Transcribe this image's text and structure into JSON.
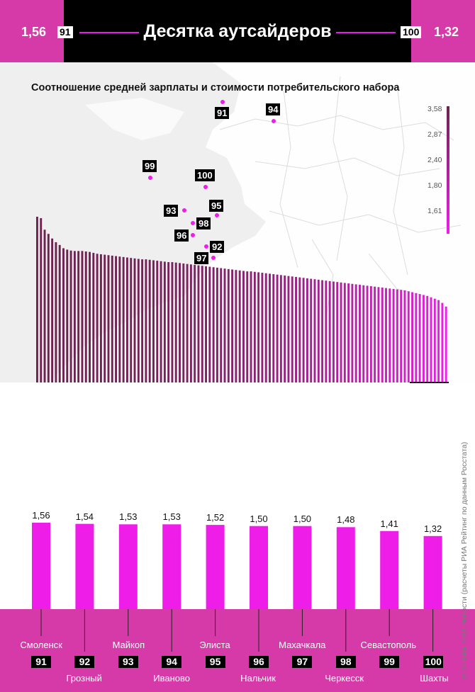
{
  "header": {
    "title": "Десятка аутсайдеров",
    "left_value": "1,56",
    "left_rank": "91",
    "right_value": "1,32",
    "right_rank": "100"
  },
  "map": {
    "subtitle": "Соотношение средней зарплаты и стоимости потребительского набора",
    "markers": [
      "91",
      "94",
      "99",
      "100",
      "93",
      "95",
      "98",
      "96",
      "92",
      "97"
    ]
  },
  "legend": {
    "ticks": [
      "3,58",
      "2,87",
      "2,40",
      "1,80",
      "1,61"
    ]
  },
  "colors": {
    "magenta": "#ee1ee8",
    "pink_band": "#d63aa8",
    "dark_bar": "#6e2250",
    "map_bg": "#efefef"
  },
  "chart_data": [
    {
      "type": "bar",
      "title": "",
      "note": "ranking profile of all regions (unlabeled)",
      "values": [
        3.58,
        3.55,
        3.3,
        3.21,
        3.11,
        3.03,
        2.97,
        2.9,
        2.87,
        2.85,
        2.84,
        2.84,
        2.84,
        2.83,
        2.82,
        2.8,
        2.78,
        2.77,
        2.76,
        2.75,
        2.74,
        2.73,
        2.72,
        2.71,
        2.7,
        2.69,
        2.68,
        2.67,
        2.66,
        2.66,
        2.65,
        2.64,
        2.63,
        2.62,
        2.61,
        2.6,
        2.6,
        2.59,
        2.58,
        2.57,
        2.56,
        2.55,
        2.54,
        2.53,
        2.52,
        2.51,
        2.5,
        2.49,
        2.48,
        2.47,
        2.46,
        2.45,
        2.44,
        2.43,
        2.42,
        2.41,
        2.4,
        2.4,
        2.39,
        2.38,
        2.37,
        2.36,
        2.35,
        2.34,
        2.33,
        2.32,
        2.31,
        2.3,
        2.29,
        2.28,
        2.27,
        2.26,
        2.25,
        2.24,
        2.23,
        2.22,
        2.21,
        2.2,
        2.19,
        2.18,
        2.17,
        2.16,
        2.15,
        2.14,
        2.13,
        2.12,
        2.11,
        2.1,
        2.09,
        2.08,
        2.07,
        2.06,
        2.05,
        2.04,
        2.03,
        2.02,
        2.01,
        2.0,
        1.99,
        1.97,
        1.95,
        1.93,
        1.91,
        1.89,
        1.87,
        1.84,
        1.81,
        1.78,
        1.72,
        1.64
      ]
    },
    {
      "type": "bar",
      "title": "",
      "categories": [
        "Смоленск",
        "Грозный",
        "Майкоп",
        "Иваново",
        "Элиста",
        "Нальчик",
        "Махачкала",
        "Черкесск",
        "Севастополь",
        "Шахты"
      ],
      "ranks": [
        "91",
        "92",
        "93",
        "94",
        "95",
        "96",
        "97",
        "98",
        "99",
        "100"
      ],
      "values": [
        1.56,
        1.54,
        1.53,
        1.53,
        1.52,
        1.5,
        1.5,
        1.48,
        1.41,
        1.32
      ],
      "value_labels": [
        "1,56",
        "1,54",
        "1,53",
        "1,53",
        "1,52",
        "1,50",
        "1,50",
        "1,48",
        "1,41",
        "1,32"
      ]
    }
  ],
  "source": "Источник: РИА Новости (расчеты РИА Рейтинг по данным Росстата)"
}
